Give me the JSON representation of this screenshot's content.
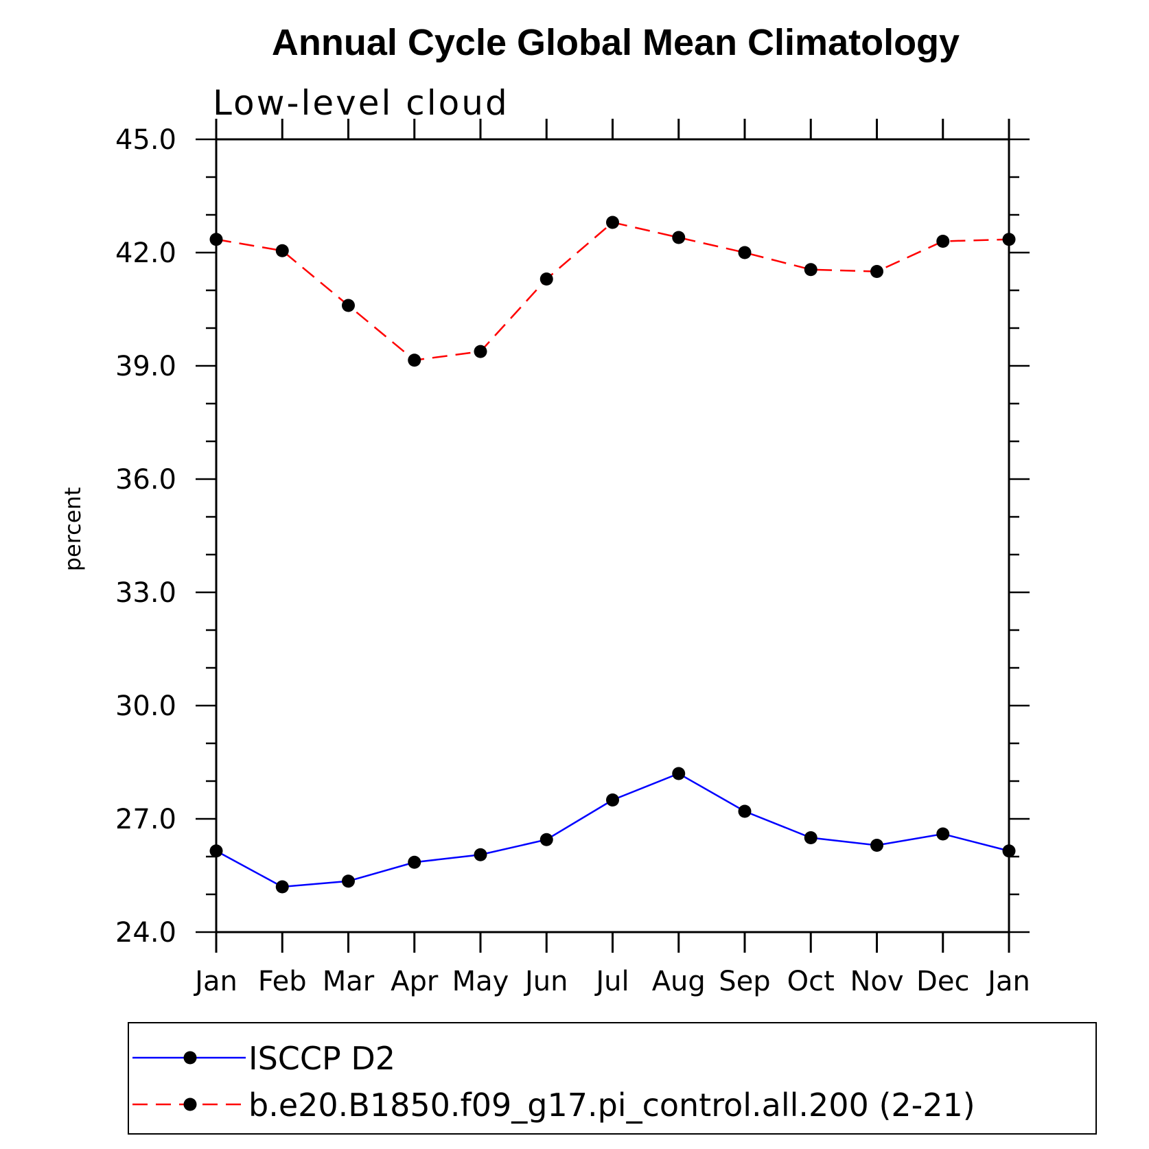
{
  "chart_data": {
    "type": "line",
    "title": "Annual Cycle Global Mean Climatology",
    "subtitle": "Low-level cloud",
    "ylabel": "percent",
    "categories": [
      "Jan",
      "Feb",
      "Mar",
      "Apr",
      "May",
      "Jun",
      "Jul",
      "Aug",
      "Sep",
      "Oct",
      "Nov",
      "Dec",
      "Jan"
    ],
    "ylim": [
      24.0,
      45.0
    ],
    "yticks": [
      "24.0",
      "27.0",
      "30.0",
      "33.0",
      "36.0",
      "39.0",
      "42.0",
      "45.0"
    ],
    "grid": false,
    "legend_position": "bottom",
    "series": [
      {
        "name": "ISCCP D2",
        "color": "#0000ff",
        "dash": "solid",
        "marker": "filled-circle",
        "values": [
          26.15,
          25.2,
          25.35,
          25.85,
          26.05,
          26.45,
          27.5,
          28.2,
          27.2,
          26.5,
          26.3,
          26.6,
          26.15
        ]
      },
      {
        "name": "b.e20.B1850.f09_g17.pi_control.all.200 (2-21)",
        "color": "#ff0000",
        "dash": "dashed",
        "marker": "filled-circle",
        "values": [
          42.35,
          42.05,
          40.6,
          39.15,
          39.38,
          41.3,
          42.8,
          42.4,
          42.0,
          41.55,
          41.5,
          42.3,
          42.35
        ]
      }
    ]
  }
}
